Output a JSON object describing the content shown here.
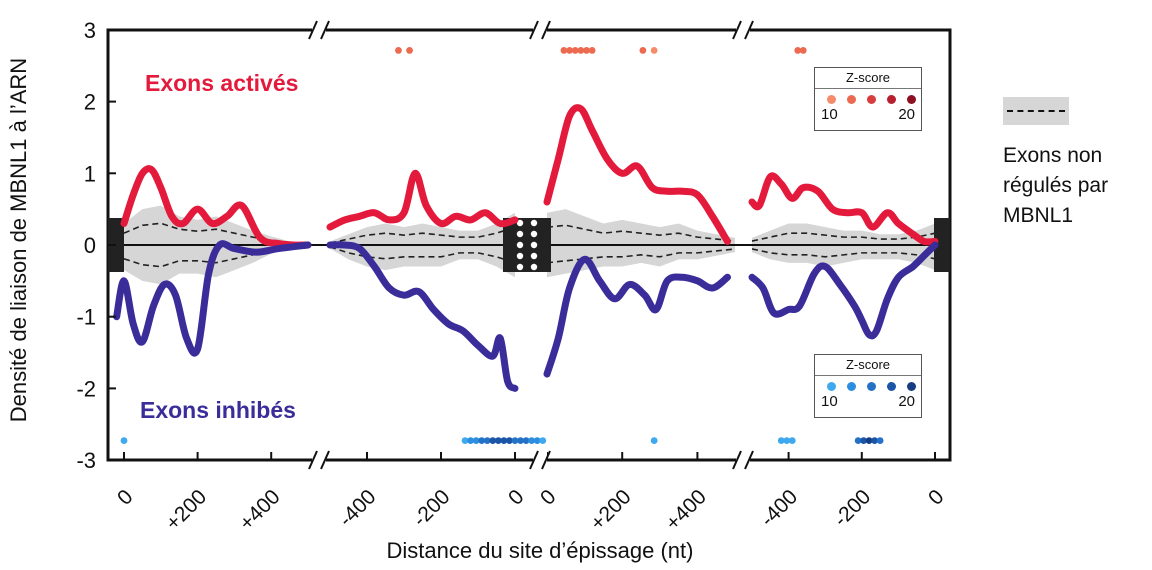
{
  "chart_data": {
    "type": "line",
    "ylabel": "Densité de liaison de MBNL1 à l’ARN",
    "xlabel": "Distance du site d’épissage (nt)",
    "ylim": [
      -3,
      3
    ],
    "yticks": [
      3,
      2,
      1,
      0,
      -1,
      -2,
      -3
    ],
    "x_segments": [
      {
        "xlim": [
          0,
          500
        ],
        "ticks": [
          0,
          200,
          400
        ],
        "tick_labels": [
          "0",
          "+200",
          "+400"
        ]
      },
      {
        "xlim": [
          -500,
          0
        ],
        "ticks": [
          -400,
          -200,
          0
        ],
        "tick_labels": [
          "-400",
          "-200",
          "0"
        ]
      },
      {
        "xlim": [
          0,
          500
        ],
        "ticks": [
          0,
          200,
          400
        ],
        "tick_labels": [
          "0",
          "+200",
          "+400"
        ]
      },
      {
        "xlim": [
          -500,
          0
        ],
        "ticks": [
          -400,
          -200,
          0
        ],
        "tick_labels": [
          "-400",
          "-200",
          "0"
        ]
      }
    ],
    "series": [
      {
        "name": "Exons activés",
        "color": "#e31a3c",
        "segments": [
          {
            "x": [
              0,
              25,
              50,
              75,
              100,
              130,
              160,
              200,
              240,
              280,
              320,
              370,
              420,
              460,
              500
            ],
            "y": [
              0.3,
              0.7,
              1.0,
              1.05,
              0.8,
              0.4,
              0.3,
              0.5,
              0.3,
              0.4,
              0.55,
              0.1,
              0.02,
              0.0,
              0.0
            ]
          },
          {
            "x": [
              -500,
              -460,
              -420,
              -380,
              -340,
              -300,
              -270,
              -240,
              -200,
              -160,
              -120,
              -80,
              -40,
              0
            ],
            "y": [
              0.25,
              0.35,
              0.4,
              0.45,
              0.35,
              0.45,
              1.0,
              0.55,
              0.3,
              0.4,
              0.35,
              0.45,
              0.3,
              0.35
            ]
          },
          {
            "x": [
              0,
              30,
              60,
              90,
              120,
              160,
              200,
              240,
              280,
              320,
              360,
              400,
              440,
              480
            ],
            "y": [
              0.6,
              1.2,
              1.8,
              1.9,
              1.6,
              1.2,
              1.0,
              1.1,
              0.8,
              0.75,
              0.75,
              0.7,
              0.4,
              0.05
            ]
          },
          {
            "x": [
              -500,
              -480,
              -450,
              -420,
              -390,
              -360,
              -320,
              -280,
              -240,
              -200,
              -170,
              -130,
              -100,
              -60,
              -30,
              0
            ],
            "y": [
              0.6,
              0.55,
              0.95,
              0.85,
              0.65,
              0.8,
              0.75,
              0.5,
              0.45,
              0.45,
              0.25,
              0.45,
              0.3,
              0.15,
              0.05,
              0.05
            ]
          }
        ]
      },
      {
        "name": "Exons inhibés",
        "color": "#3a2d9a",
        "segments": [
          {
            "x": [
              -20,
              0,
              25,
              50,
              80,
              110,
              140,
              170,
              200,
              230,
              260,
              300,
              360,
              420,
              500
            ],
            "y": [
              -1.0,
              -0.5,
              -1.1,
              -1.35,
              -0.85,
              -0.55,
              -0.7,
              -1.3,
              -1.45,
              -0.4,
              0.0,
              -0.05,
              -0.1,
              -0.05,
              0.0
            ]
          },
          {
            "x": [
              -500,
              -460,
              -420,
              -380,
              -340,
              -300,
              -260,
              -220,
              -180,
              -140,
              -100,
              -60,
              -40,
              -20,
              0
            ],
            "y": [
              0.0,
              0.0,
              -0.05,
              -0.3,
              -0.6,
              -0.7,
              -0.65,
              -0.9,
              -1.1,
              -1.2,
              -1.4,
              -1.55,
              -1.3,
              -1.9,
              -2.0
            ]
          },
          {
            "x": [
              0,
              30,
              60,
              100,
              140,
              180,
              220,
              260,
              290,
              320,
              360,
              400,
              440,
              480
            ],
            "y": [
              -1.8,
              -1.3,
              -0.6,
              -0.2,
              -0.5,
              -0.75,
              -0.55,
              -0.7,
              -0.9,
              -0.5,
              -0.45,
              -0.5,
              -0.6,
              -0.45
            ]
          },
          {
            "x": [
              -500,
              -470,
              -440,
              -400,
              -370,
              -330,
              -300,
              -260,
              -220,
              -200,
              -180,
              -160,
              -130,
              -100,
              -60,
              -30,
              0
            ],
            "y": [
              -0.45,
              -0.6,
              -0.95,
              -0.9,
              -0.85,
              -0.4,
              -0.3,
              -0.55,
              -0.85,
              -1.05,
              -1.25,
              -1.2,
              -0.75,
              -0.45,
              -0.3,
              -0.15,
              0.0
            ]
          }
        ]
      },
      {
        "name": "Exons non régulés par MBNL1",
        "color": "#222222",
        "band_color": "#d6d6d6",
        "segments": [
          {
            "x": [
              0,
              50,
              100,
              150,
              200,
              250,
              300,
              350,
              400,
              450,
              500
            ],
            "upper": [
              0.3,
              0.5,
              0.55,
              0.4,
              0.35,
              0.4,
              0.3,
              0.2,
              0.12,
              0.05,
              0.02
            ],
            "lower": [
              -0.35,
              -0.5,
              -0.55,
              -0.4,
              -0.4,
              -0.45,
              -0.35,
              -0.25,
              -0.12,
              -0.05,
              -0.02
            ]
          },
          {
            "x": [
              -500,
              -450,
              -400,
              -350,
              -300,
              -250,
              -200,
              -150,
              -100,
              -50,
              0
            ],
            "upper": [
              0.05,
              0.15,
              0.25,
              0.3,
              0.25,
              0.3,
              0.25,
              0.2,
              0.2,
              0.3,
              0.45
            ],
            "lower": [
              -0.05,
              -0.2,
              -0.3,
              -0.35,
              -0.3,
              -0.3,
              -0.3,
              -0.2,
              -0.2,
              -0.3,
              -0.45
            ]
          },
          {
            "x": [
              0,
              50,
              100,
              150,
              200,
              250,
              300,
              350,
              400,
              450,
              500
            ],
            "upper": [
              0.45,
              0.5,
              0.4,
              0.3,
              0.35,
              0.3,
              0.25,
              0.3,
              0.2,
              0.15,
              0.1
            ],
            "lower": [
              -0.45,
              -0.4,
              -0.35,
              -0.3,
              -0.3,
              -0.25,
              -0.3,
              -0.2,
              -0.2,
              -0.15,
              -0.1
            ]
          },
          {
            "x": [
              -500,
              -450,
              -400,
              -350,
              -300,
              -250,
              -200,
              -150,
              -100,
              -50,
              0
            ],
            "upper": [
              0.1,
              0.2,
              0.3,
              0.3,
              0.25,
              0.2,
              0.2,
              0.15,
              0.15,
              0.2,
              0.3
            ],
            "lower": [
              -0.1,
              -0.2,
              -0.25,
              -0.25,
              -0.3,
              -0.25,
              -0.2,
              -0.2,
              -0.2,
              -0.25,
              -0.35
            ]
          }
        ]
      }
    ],
    "zscore_rows": [
      {
        "series": "Exons activés",
        "y": 2.7,
        "points": [
          {
            "segment": 1,
            "x": -315,
            "z": 12
          },
          {
            "segment": 1,
            "x": -285,
            "z": 12
          },
          {
            "segment": 2,
            "x": 45,
            "z": 12
          },
          {
            "segment": 2,
            "x": 60,
            "z": 12
          },
          {
            "segment": 2,
            "x": 75,
            "z": 12
          },
          {
            "segment": 2,
            "x": 90,
            "z": 12
          },
          {
            "segment": 2,
            "x": 105,
            "z": 12
          },
          {
            "segment": 2,
            "x": 120,
            "z": 12
          },
          {
            "segment": 2,
            "x": 255,
            "z": 12
          },
          {
            "segment": 2,
            "x": 285,
            "z": 10
          },
          {
            "segment": 3,
            "x": -375,
            "z": 12
          },
          {
            "segment": 3,
            "x": -360,
            "z": 12
          }
        ]
      },
      {
        "series": "Exons inhibés",
        "y": -2.7,
        "points": [
          {
            "segment": 0,
            "x": 0,
            "z": 11
          },
          {
            "segment": 1,
            "x": -135,
            "z": 11
          },
          {
            "segment": 1,
            "x": -120,
            "z": 12
          },
          {
            "segment": 1,
            "x": -105,
            "z": 13
          },
          {
            "segment": 1,
            "x": -90,
            "z": 14
          },
          {
            "segment": 1,
            "x": -75,
            "z": 16
          },
          {
            "segment": 1,
            "x": -60,
            "z": 18
          },
          {
            "segment": 1,
            "x": -45,
            "z": 18
          },
          {
            "segment": 1,
            "x": -30,
            "z": 18
          },
          {
            "segment": 1,
            "x": -15,
            "z": 17
          },
          {
            "segment": 1,
            "x": 0,
            "z": 16
          },
          {
            "segment": 1,
            "x": 15,
            "z": 15
          },
          {
            "segment": 1,
            "x": 30,
            "z": 14
          },
          {
            "segment": 1,
            "x": 45,
            "z": 13
          },
          {
            "segment": 1,
            "x": 60,
            "z": 12
          },
          {
            "segment": 1,
            "x": 75,
            "z": 11
          },
          {
            "segment": 2,
            "x": 285,
            "z": 10
          },
          {
            "segment": 3,
            "x": -420,
            "z": 11
          },
          {
            "segment": 3,
            "x": -405,
            "z": 11
          },
          {
            "segment": 3,
            "x": -390,
            "z": 11
          },
          {
            "segment": 3,
            "x": -210,
            "z": 15
          },
          {
            "segment": 3,
            "x": -195,
            "z": 18
          },
          {
            "segment": 3,
            "x": -180,
            "z": 20
          },
          {
            "segment": 3,
            "x": -165,
            "z": 18
          },
          {
            "segment": 3,
            "x": -150,
            "z": 16
          }
        ]
      }
    ],
    "zscore_legends": [
      {
        "title": "Z-score",
        "min_label": "10",
        "max_label": "20",
        "colors": [
          "#f58b6a",
          "#ec6a50",
          "#d93c3c",
          "#b82030",
          "#8c1020"
        ]
      },
      {
        "title": "Z-score",
        "min_label": "10",
        "max_label": "20",
        "colors": [
          "#3fa9ef",
          "#2b8ee0",
          "#2372c7",
          "#1a55a8",
          "#163d82"
        ]
      }
    ],
    "annotations": {
      "activated": "Exons activés",
      "inhibited": "Exons inhibés"
    },
    "side_legend": {
      "line1": "Exons non",
      "line2": "régulés par",
      "line3": "MBNL1"
    }
  }
}
